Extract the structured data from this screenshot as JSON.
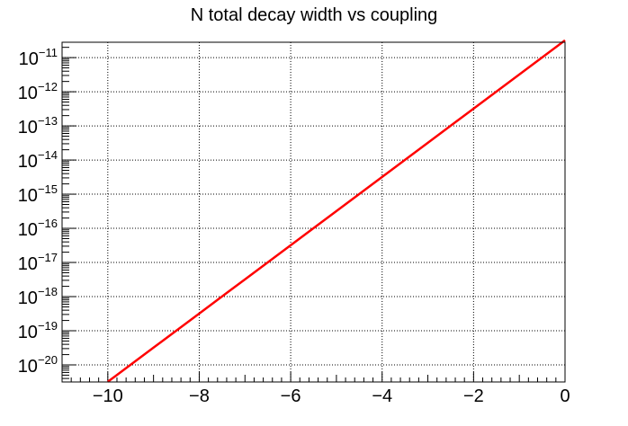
{
  "chart_data": {
    "type": "line",
    "title": "N total decay width vs coupling",
    "xlabel": "",
    "ylabel": "",
    "xlim": [
      -11.0,
      0.0
    ],
    "ylim_log10": [
      -20.5,
      -10.55
    ],
    "y_scale": "log",
    "grid": true,
    "grid_style": "dotted",
    "x_ticks": [
      -10,
      -8,
      -6,
      -4,
      -2,
      0
    ],
    "x_tick_labels": [
      "−10",
      "−8",
      "−6",
      "−4",
      "−2",
      "0"
    ],
    "y_tick_exponents": [
      -20,
      -19,
      -18,
      -17,
      -16,
      -15,
      -14,
      -13,
      -12,
      -11
    ],
    "y_tick_base": "10",
    "y_tick_exponent_labels": [
      "−20",
      "−19",
      "−18",
      "−17",
      "−16",
      "−15",
      "−14",
      "−13",
      "−12",
      "−11"
    ],
    "series": [
      {
        "color": "#ff0000",
        "x": [
          -10,
          -9,
          -8,
          -7,
          -6,
          -5,
          -4,
          -3,
          -2,
          -1,
          0
        ],
        "y": [
          3.2e-21,
          3.2e-20,
          3.2e-19,
          3.2e-18,
          3.2e-17,
          3.2e-16,
          3.2e-15,
          3.2e-14,
          3.2e-13,
          3.2e-12,
          3.2e-11
        ]
      }
    ]
  }
}
